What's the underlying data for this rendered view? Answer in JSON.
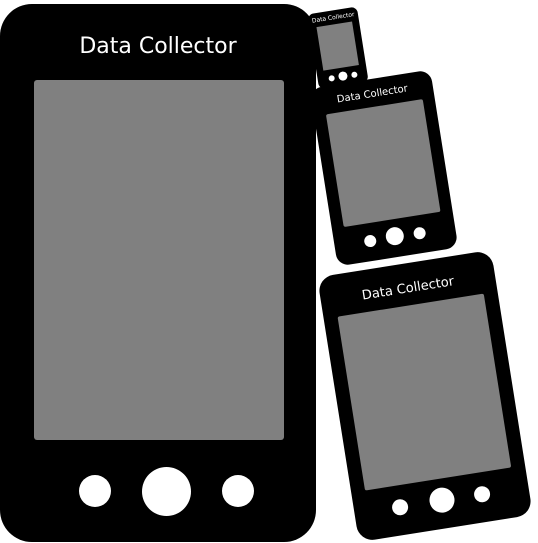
{
  "devices": {
    "main": {
      "title": "Data Collector"
    },
    "small_top": {
      "title": "Data Collector"
    },
    "medium": {
      "title": "Data Collector"
    },
    "large_right": {
      "title": "Data Collector"
    }
  },
  "colors": {
    "device_body": "#000000",
    "screen": "#808080",
    "button": "#ffffff",
    "label": "#ffffff",
    "background": "#ffffff"
  }
}
